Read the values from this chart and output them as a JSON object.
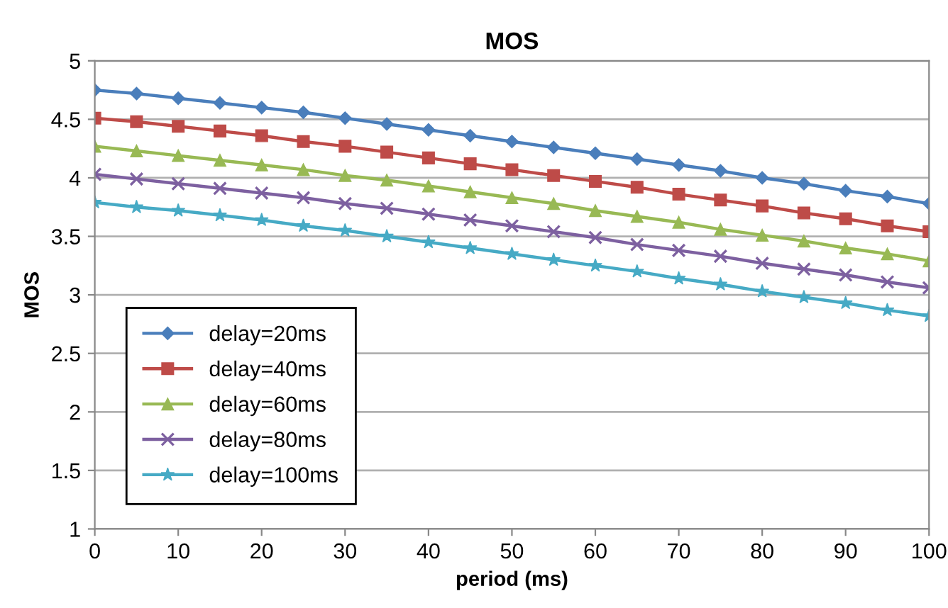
{
  "chart_data": {
    "type": "line",
    "title": "MOS",
    "xlabel": "period (ms)",
    "ylabel": "MOS",
    "x": [
      0,
      5,
      10,
      15,
      20,
      25,
      30,
      35,
      40,
      45,
      50,
      55,
      60,
      65,
      70,
      75,
      80,
      85,
      90,
      95,
      100
    ],
    "series": [
      {
        "name": "delay=20ms",
        "color": "#4a7ebb",
        "marker": "diamond",
        "values": [
          4.75,
          4.72,
          4.68,
          4.64,
          4.6,
          4.56,
          4.51,
          4.46,
          4.41,
          4.36,
          4.31,
          4.26,
          4.21,
          4.16,
          4.11,
          4.06,
          4.0,
          3.95,
          3.89,
          3.84,
          3.78
        ]
      },
      {
        "name": "delay=40ms",
        "color": "#be4b48",
        "marker": "square",
        "values": [
          4.51,
          4.48,
          4.44,
          4.4,
          4.36,
          4.31,
          4.27,
          4.22,
          4.17,
          4.12,
          4.07,
          4.02,
          3.97,
          3.92,
          3.86,
          3.81,
          3.76,
          3.7,
          3.65,
          3.59,
          3.54
        ]
      },
      {
        "name": "delay=60ms",
        "color": "#98b954",
        "marker": "triangle",
        "values": [
          4.27,
          4.23,
          4.19,
          4.15,
          4.11,
          4.07,
          4.02,
          3.98,
          3.93,
          3.88,
          3.83,
          3.78,
          3.72,
          3.67,
          3.62,
          3.56,
          3.51,
          3.46,
          3.4,
          3.35,
          3.29
        ]
      },
      {
        "name": "delay=80ms",
        "color": "#7d60a0",
        "marker": "cross",
        "values": [
          4.03,
          3.99,
          3.95,
          3.91,
          3.87,
          3.83,
          3.78,
          3.74,
          3.69,
          3.64,
          3.59,
          3.54,
          3.49,
          3.43,
          3.38,
          3.33,
          3.27,
          3.22,
          3.17,
          3.11,
          3.06
        ]
      },
      {
        "name": "delay=100ms",
        "color": "#46aac5",
        "marker": "star",
        "values": [
          3.79,
          3.75,
          3.72,
          3.68,
          3.64,
          3.59,
          3.55,
          3.5,
          3.45,
          3.4,
          3.35,
          3.3,
          3.25,
          3.2,
          3.14,
          3.09,
          3.03,
          2.98,
          2.93,
          2.87,
          2.82
        ]
      }
    ],
    "xlim": [
      0,
      100
    ],
    "xticks": [
      0,
      10,
      20,
      30,
      40,
      50,
      60,
      70,
      80,
      90,
      100
    ],
    "ylim": [
      1,
      5
    ],
    "yticks": [
      1,
      1.5,
      2,
      2.5,
      3,
      3.5,
      4,
      4.5,
      5
    ],
    "grid": "y",
    "legend": "bottom left",
    "line_style": "solid"
  }
}
